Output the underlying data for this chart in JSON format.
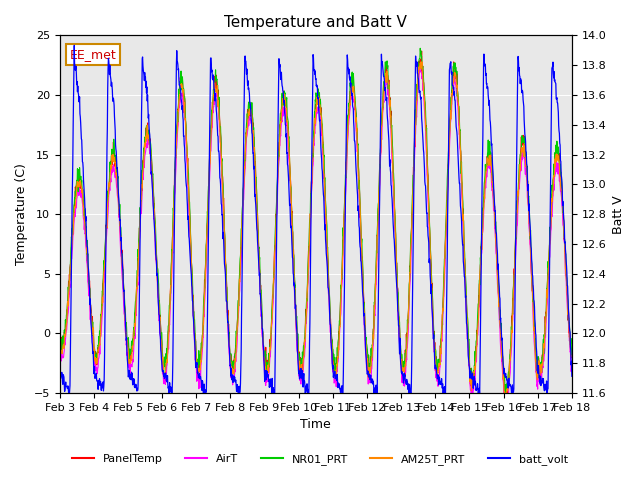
{
  "title": "Temperature and Batt V",
  "xlabel": "Time",
  "ylabel_left": "Temperature (C)",
  "ylabel_right": "Batt V",
  "ylim_left": [
    -5,
    25
  ],
  "ylim_right": [
    11.6,
    14.0
  ],
  "xlim": [
    0,
    15
  ],
  "xtick_labels": [
    "Feb 3",
    "Feb 4",
    "Feb 5",
    "Feb 6",
    "Feb 7",
    "Feb 8",
    "Feb 9",
    "Feb 10",
    "Feb 11",
    "Feb 12",
    "Feb 13",
    "Feb 14",
    "Feb 15",
    "Feb 16",
    "Feb 17",
    "Feb 18"
  ],
  "xtick_positions": [
    0,
    1,
    2,
    3,
    4,
    5,
    6,
    7,
    8,
    9,
    10,
    11,
    12,
    13,
    14,
    15
  ],
  "annotation_text": "EE_met",
  "bg_color": "#e8e8e8",
  "series_colors": {
    "PanelTemp": "#ff0000",
    "AirT": "#ff00ff",
    "NR01_PRT": "#00cc00",
    "AM25T_PRT": "#ff8800",
    "batt_volt": "#0000ff"
  },
  "legend_labels": [
    "PanelTemp",
    "AirT",
    "NR01_PRT",
    "AM25T_PRT",
    "batt_volt"
  ]
}
